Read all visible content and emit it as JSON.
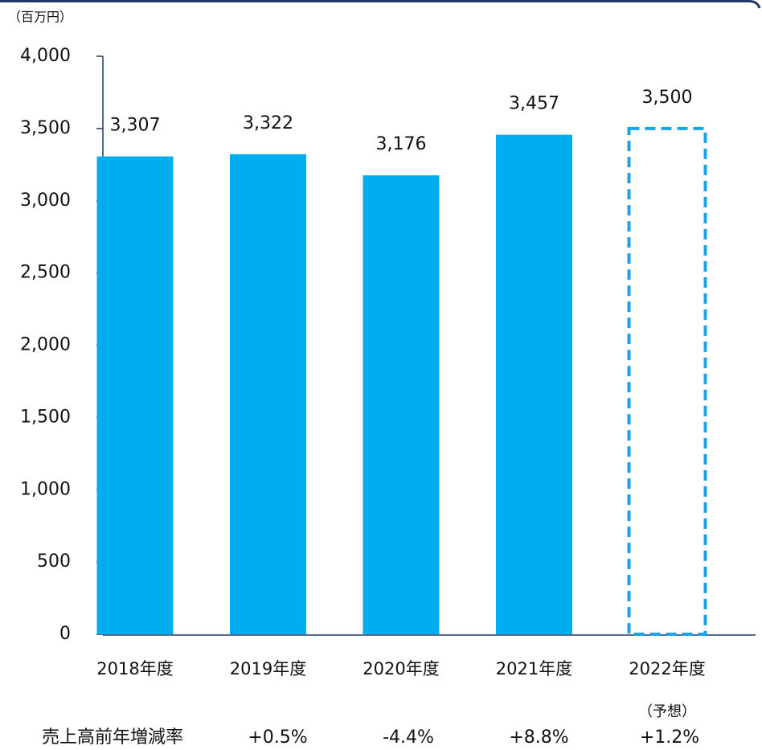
{
  "chart_data": {
    "type": "bar",
    "unit_label": "（百万円）",
    "categories": [
      "2018年度",
      "2019年度",
      "2020年度",
      "2021年度",
      "2022年度"
    ],
    "values": [
      3307,
      3322,
      3176,
      3457,
      3500
    ],
    "value_labels": [
      "3,307",
      "3,322",
      "3,176",
      "3,457",
      "3,500"
    ],
    "bar_styles": [
      "solid",
      "solid",
      "solid",
      "solid",
      "dashed"
    ],
    "color": "#00aeef",
    "forecast_note": "（予想）",
    "growth_row_label": "売上高前年増減率",
    "growth_rates": [
      "+0.5%",
      "-4.4%",
      "+8.8%",
      "+1.2%"
    ],
    "ylim": [
      0,
      4000
    ],
    "yticks": [
      0,
      500,
      {
        "value": 1000,
        "label": "1,000"
      },
      {
        "value": 1500,
        "label": "1,500"
      },
      {
        "value": 2000,
        "label": "2,000"
      },
      {
        "value": 2500,
        "label": "2,500"
      },
      {
        "value": 3000,
        "label": "3,000"
      },
      {
        "value": 3500,
        "label": "3,500"
      },
      {
        "value": 4000,
        "label": "4,000"
      }
    ],
    "grid": false
  }
}
